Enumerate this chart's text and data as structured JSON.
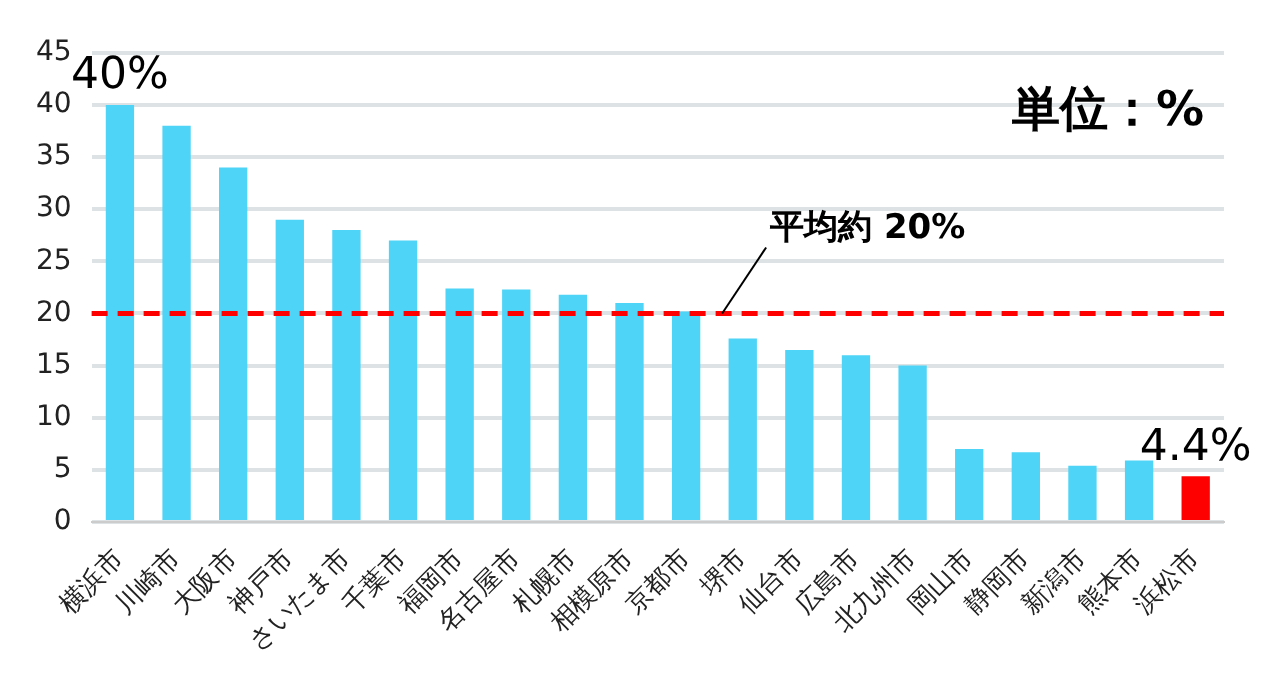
{
  "chart_data": {
    "type": "bar",
    "categories": [
      "横浜市",
      "川崎市",
      "大阪市",
      "神戸市",
      "さいたま市",
      "千葉市",
      "福岡市",
      "名古屋市",
      "札幌市",
      "相模原市",
      "京都市",
      "堺市",
      "仙台市",
      "広島市",
      "北九州市",
      "岡山市",
      "静岡市",
      "新潟市",
      "熊本市",
      "浜松市"
    ],
    "values": [
      40,
      38,
      34,
      29,
      28,
      27,
      22.4,
      22.3,
      21.8,
      21,
      20.2,
      17.6,
      16.5,
      16,
      15,
      7,
      6.7,
      5.4,
      5.9,
      4.4
    ],
    "colors": [
      "#4dd4f7",
      "#4dd4f7",
      "#4dd4f7",
      "#4dd4f7",
      "#4dd4f7",
      "#4dd4f7",
      "#4dd4f7",
      "#4dd4f7",
      "#4dd4f7",
      "#4dd4f7",
      "#4dd4f7",
      "#4dd4f7",
      "#4dd4f7",
      "#4dd4f7",
      "#4dd4f7",
      "#4dd4f7",
      "#4dd4f7",
      "#4dd4f7",
      "#4dd4f7",
      "#ff0000"
    ],
    "value_labels": [
      "40%",
      null,
      null,
      null,
      null,
      null,
      null,
      null,
      null,
      null,
      null,
      null,
      null,
      null,
      null,
      null,
      null,
      null,
      null,
      "4.4%"
    ],
    "ylim": [
      0,
      45
    ],
    "yticks": [
      0,
      5,
      10,
      15,
      20,
      25,
      30,
      35,
      40,
      45
    ],
    "grid": "y",
    "legend": false,
    "ref_lines": [
      {
        "axis": "y",
        "value": 20,
        "label": "平均約 20%",
        "color": "#ff0000",
        "line_style": "dashed"
      }
    ],
    "annotations": [
      "単位：%"
    ]
  }
}
